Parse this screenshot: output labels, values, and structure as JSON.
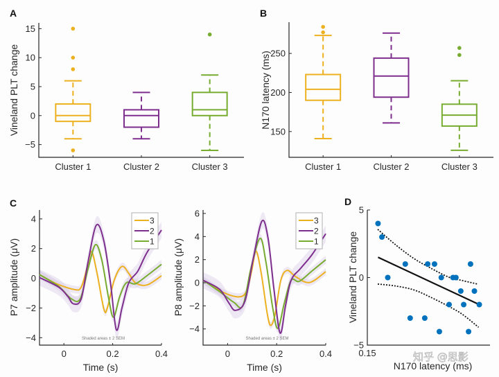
{
  "colors": {
    "cluster1": "#EDB120",
    "cluster2": "#7E2F8E",
    "cluster3": "#77AC30",
    "scatter": "#0072BD",
    "fit": "#111111",
    "sem_shade": "#d9cfe6"
  },
  "watermark": "知乎 @思影",
  "chart_data": [
    {
      "id": "A",
      "panel_label": "A",
      "type": "box",
      "title": "",
      "xlabel": "",
      "ylabel": "Vineland PLT change",
      "ylim": [
        -7.2,
        16
      ],
      "yticks": [
        -5,
        0,
        5,
        10,
        15
      ],
      "categories": [
        "Cluster 1",
        "Cluster 2",
        "Cluster 3"
      ],
      "boxes": [
        {
          "name": "Cluster 1",
          "color_key": "cluster1",
          "whisker_low": -4,
          "q1": -1,
          "median": 0,
          "q3": 2,
          "whisker_high": 6,
          "outliers": [
            15,
            10,
            8,
            -6
          ]
        },
        {
          "name": "Cluster 2",
          "color_key": "cluster2",
          "whisker_low": -4,
          "q1": -2,
          "median": 0,
          "q3": 1,
          "whisker_high": 4,
          "outliers": []
        },
        {
          "name": "Cluster 3",
          "color_key": "cluster3",
          "whisker_low": -6,
          "q1": 0,
          "median": 1,
          "q3": 4,
          "whisker_high": 7,
          "outliers": [
            14
          ]
        }
      ]
    },
    {
      "id": "B",
      "panel_label": "B",
      "type": "box",
      "title": "",
      "xlabel": "",
      "ylabel": "N170 latency (ms)",
      "ylim": [
        117,
        290
      ],
      "yticks": [
        150,
        200,
        250
      ],
      "categories": [
        "Cluster 1",
        "Cluster 2",
        "Cluster 3"
      ],
      "boxes": [
        {
          "name": "Cluster 1",
          "color_key": "cluster1",
          "whisker_low": 141,
          "q1": 190,
          "median": 204,
          "q3": 223,
          "whisker_high": 273,
          "outliers": [
            277,
            284
          ]
        },
        {
          "name": "Cluster 2",
          "color_key": "cluster2",
          "whisker_low": 161,
          "q1": 194,
          "median": 221,
          "q3": 244,
          "whisker_high": 276,
          "outliers": []
        },
        {
          "name": "Cluster 3",
          "color_key": "cluster3",
          "whisker_low": 126,
          "q1": 157,
          "median": 171,
          "q3": 185,
          "whisker_high": 215,
          "outliers": [
            248,
            257
          ]
        }
      ]
    },
    {
      "id": "C-P7",
      "panel_label": "C",
      "type": "line",
      "title": "",
      "xlabel": "Time (s)",
      "ylabel": "P7 amplitude (μV)",
      "xlim": [
        -0.1,
        0.4
      ],
      "ylim": [
        -4.5,
        4.6
      ],
      "xticks": [
        0,
        0.2,
        0.4
      ],
      "xtick_labels": [
        "0",
        "0.2",
        "0.4"
      ],
      "yticks": [
        -4,
        -2,
        0,
        2,
        4
      ],
      "annotation": "Shaded areas ± 2 SEM",
      "legend": {
        "placement": "top-right",
        "entries": [
          "3",
          "2",
          "1"
        ]
      },
      "series": [
        {
          "name": "3",
          "color_key": "cluster1",
          "sem": 0.25,
          "x": [
            -0.1,
            -0.03,
            0.044,
            0.071,
            0.094,
            0.113,
            0.136,
            0.164,
            0.178,
            0.206,
            0.238,
            0.266,
            0.293,
            0.34,
            0.4
          ],
          "y": [
            0.25,
            -0.37,
            -0.76,
            -0.6,
            0.65,
            1.8,
            0.33,
            -2.08,
            -2.0,
            -0.14,
            0.8,
            0.33,
            -0.3,
            -0.45,
            0.17
          ]
        },
        {
          "name": "2",
          "color_key": "cluster2",
          "sem": 0.55,
          "x": [
            -0.1,
            -0.021,
            0.016,
            0.039,
            0.071,
            0.099,
            0.133,
            0.164,
            0.192,
            0.215,
            0.238,
            0.266,
            0.303,
            0.34,
            0.4
          ],
          "y": [
            0.05,
            -0.6,
            -1.22,
            -1.72,
            -1.38,
            1.1,
            3.58,
            2.5,
            -0.45,
            -3.47,
            -2.0,
            -0.3,
            0.48,
            1.72,
            3.25
          ]
        },
        {
          "name": "1",
          "color_key": "cluster3",
          "sem": 0.3,
          "x": [
            -0.1,
            -0.021,
            0.03,
            0.067,
            0.099,
            0.129,
            0.155,
            0.182,
            0.203,
            0.229,
            0.256,
            0.293,
            0.34,
            0.4
          ],
          "y": [
            0.25,
            -0.55,
            -1.38,
            -1.38,
            0.64,
            2.26,
            1.26,
            -1.22,
            -2.62,
            -1.22,
            -0.3,
            -0.37,
            0.17,
            0.94
          ]
        }
      ]
    },
    {
      "id": "C-P8",
      "panel_label": "",
      "type": "line",
      "title": "",
      "xlabel": "Time (s)",
      "ylabel": "P8 amplitude (μV)",
      "xlim": [
        -0.1,
        0.4
      ],
      "ylim": [
        -5.4,
        6.3
      ],
      "xticks": [
        0,
        0.2,
        0.4
      ],
      "xtick_labels": [
        "0",
        "0.2",
        "0.4"
      ],
      "yticks": [
        -4,
        -2,
        0,
        2,
        4,
        6
      ],
      "annotation": "Shaded areas ± 2 SEM",
      "legend": {
        "placement": "top-right",
        "entries": [
          "3",
          "2",
          "1"
        ]
      },
      "series": [
        {
          "name": "3",
          "color_key": "cluster1",
          "sem": 0.3,
          "x": [
            -0.1,
            -0.023,
            0.043,
            0.076,
            0.098,
            0.116,
            0.137,
            0.161,
            0.175,
            0.193,
            0.217,
            0.243,
            0.278,
            0.334,
            0.4
          ],
          "y": [
            0.22,
            -0.78,
            -1.22,
            -0.78,
            1.02,
            2.73,
            0.83,
            -2.59,
            -3.69,
            -2.79,
            0.22,
            1.07,
            0.52,
            0.02,
            0.96
          ]
        },
        {
          "name": "2",
          "color_key": "cluster2",
          "sem": 0.7,
          "x": [
            -0.1,
            -0.032,
            0.006,
            0.032,
            0.071,
            0.104,
            0.14,
            0.165,
            0.189,
            0.214,
            0.236,
            0.259,
            0.297,
            0.344,
            0.4
          ],
          "y": [
            0.22,
            -0.58,
            -1.78,
            -2.39,
            -1.58,
            2.03,
            5.34,
            3.84,
            -0.58,
            -4.35,
            -1.99,
            0.22,
            1.23,
            2.43,
            4.24
          ]
        },
        {
          "name": "1",
          "color_key": "cluster3",
          "sem": 0.35,
          "x": [
            -0.1,
            -0.032,
            0.025,
            0.062,
            0.095,
            0.132,
            0.156,
            0.184,
            0.205,
            0.231,
            0.259,
            0.292,
            0.344,
            0.4
          ],
          "y": [
            0.22,
            -0.78,
            -1.69,
            -1.99,
            1.23,
            3.84,
            1.83,
            -2.19,
            -3.95,
            -1.78,
            0.22,
            0.12,
            1.02,
            1.99
          ]
        }
      ]
    },
    {
      "id": "D",
      "panel_label": "D",
      "type": "scatter",
      "title": "",
      "xlabel": "N170 latency (ms)",
      "ylabel": "Vineland PLT change",
      "xlim": [
        0.15,
        0.276
      ],
      "ylim": [
        -5,
        5
      ],
      "xticks": [
        0.15
      ],
      "xtick_labels": [
        "0.15"
      ],
      "yticks": [
        -5,
        0,
        5
      ],
      "points": {
        "x": [
          0.161,
          0.165,
          0.171,
          0.189,
          0.194,
          0.209,
          0.212,
          0.219,
          0.224,
          0.226,
          0.234,
          0.238,
          0.241,
          0.246,
          0.249,
          0.254,
          0.256,
          0.26,
          0.265
        ],
        "y": [
          4,
          3,
          0,
          1,
          -3,
          -3,
          1,
          1,
          -4,
          0,
          -2,
          0,
          0,
          -1,
          -2,
          -4,
          1,
          -1,
          -2
        ]
      },
      "fit_line": {
        "x": [
          0.161,
          0.265
        ],
        "y": [
          1.5,
          -2.0
        ]
      },
      "ci_upper": {
        "x": [
          0.1607,
          0.1786,
          0.1976,
          0.2143,
          0.2333,
          0.2476,
          0.2631
        ],
        "y": [
          3.57,
          2.45,
          1.42,
          0.73,
          0.04,
          -0.22,
          -0.48
        ]
      },
      "ci_lower": {
        "x": [
          0.1607,
          0.1786,
          0.1976,
          0.2143,
          0.2333,
          0.2476,
          0.2643
        ],
        "y": [
          -0.48,
          -0.62,
          -0.91,
          -1.43,
          -2.12,
          -2.72,
          -3.68
        ]
      }
    }
  ]
}
